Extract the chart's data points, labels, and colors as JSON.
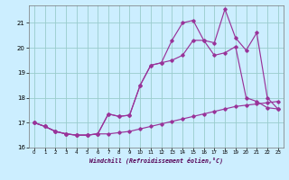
{
  "background_color": "#cceeff",
  "line_color": "#993399",
  "grid_color": "#99cccc",
  "xlim": [
    -0.5,
    23.5
  ],
  "ylim": [
    16.0,
    21.7
  ],
  "yticks": [
    16,
    17,
    18,
    19,
    20,
    21
  ],
  "xticks": [
    0,
    1,
    2,
    3,
    4,
    5,
    6,
    7,
    8,
    9,
    10,
    11,
    12,
    13,
    14,
    15,
    16,
    17,
    18,
    19,
    20,
    21,
    22,
    23
  ],
  "xlabel": "Windchill (Refroidissement éolien,°C)",
  "line1_x": [
    0,
    1,
    2,
    3,
    4,
    5,
    6,
    7,
    8,
    9,
    10,
    11,
    12,
    13,
    14,
    15,
    16,
    17,
    18,
    19,
    20,
    21,
    22,
    23
  ],
  "line1_y": [
    17.0,
    16.85,
    16.65,
    16.55,
    16.5,
    16.5,
    16.55,
    16.55,
    16.6,
    16.65,
    16.75,
    16.85,
    16.95,
    17.05,
    17.15,
    17.25,
    17.35,
    17.45,
    17.55,
    17.65,
    17.7,
    17.75,
    17.8,
    17.85
  ],
  "line2_x": [
    0,
    1,
    2,
    3,
    4,
    5,
    6,
    7,
    8,
    9,
    10,
    11,
    12,
    13,
    14,
    15,
    16,
    17,
    18,
    19,
    20,
    21,
    22,
    23
  ],
  "line2_y": [
    17.0,
    16.85,
    16.65,
    16.55,
    16.5,
    16.5,
    16.55,
    17.35,
    17.25,
    17.3,
    18.5,
    19.3,
    19.4,
    19.5,
    19.7,
    20.3,
    20.3,
    19.7,
    19.8,
    20.05,
    18.0,
    17.85,
    17.6,
    17.55
  ],
  "line3_x": [
    0,
    1,
    2,
    3,
    4,
    5,
    6,
    7,
    8,
    9,
    10,
    11,
    12,
    13,
    14,
    15,
    16,
    17,
    18,
    19,
    20,
    21,
    22,
    23
  ],
  "line3_y": [
    17.0,
    16.85,
    16.65,
    16.55,
    16.5,
    16.5,
    16.55,
    17.35,
    17.25,
    17.3,
    18.5,
    19.3,
    19.4,
    20.3,
    21.0,
    21.1,
    20.3,
    20.2,
    21.55,
    20.4,
    19.9,
    20.6,
    18.0,
    17.55
  ]
}
